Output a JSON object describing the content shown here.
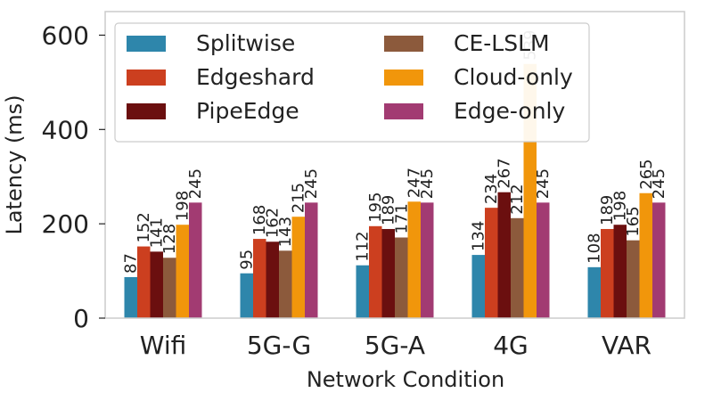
{
  "chart_data": {
    "type": "bar",
    "title": "",
    "xlabel": "Network Condition",
    "ylabel": "Latency (ms)",
    "ylim": [
      0,
      650
    ],
    "yticks": [
      0,
      200,
      400,
      600
    ],
    "categories": [
      "Wifi",
      "5G-G",
      "5G-A",
      "4G",
      "VAR"
    ],
    "grid": false,
    "legend": {
      "position": "top-left",
      "columns": 2
    },
    "series": [
      {
        "name": "Splitwise",
        "color": "#2e86ab",
        "values": [
          87,
          95,
          112,
          134,
          108
        ]
      },
      {
        "name": "Edgeshard",
        "color": "#cc3f1f",
        "values": [
          152,
          168,
          195,
          234,
          189
        ]
      },
      {
        "name": "PipeEdge",
        "color": "#6b0f0f",
        "values": [
          141,
          162,
          189,
          267,
          198
        ]
      },
      {
        "name": "CE-LSLM",
        "color": "#8c5a3c",
        "values": [
          128,
          143,
          171,
          212,
          165
        ]
      },
      {
        "name": "Cloud-only",
        "color": "#f1960b",
        "values": [
          198,
          215,
          247,
          539,
          265
        ]
      },
      {
        "name": "Edge-only",
        "color": "#a23b72",
        "values": [
          245,
          245,
          245,
          245,
          245
        ]
      }
    ]
  }
}
